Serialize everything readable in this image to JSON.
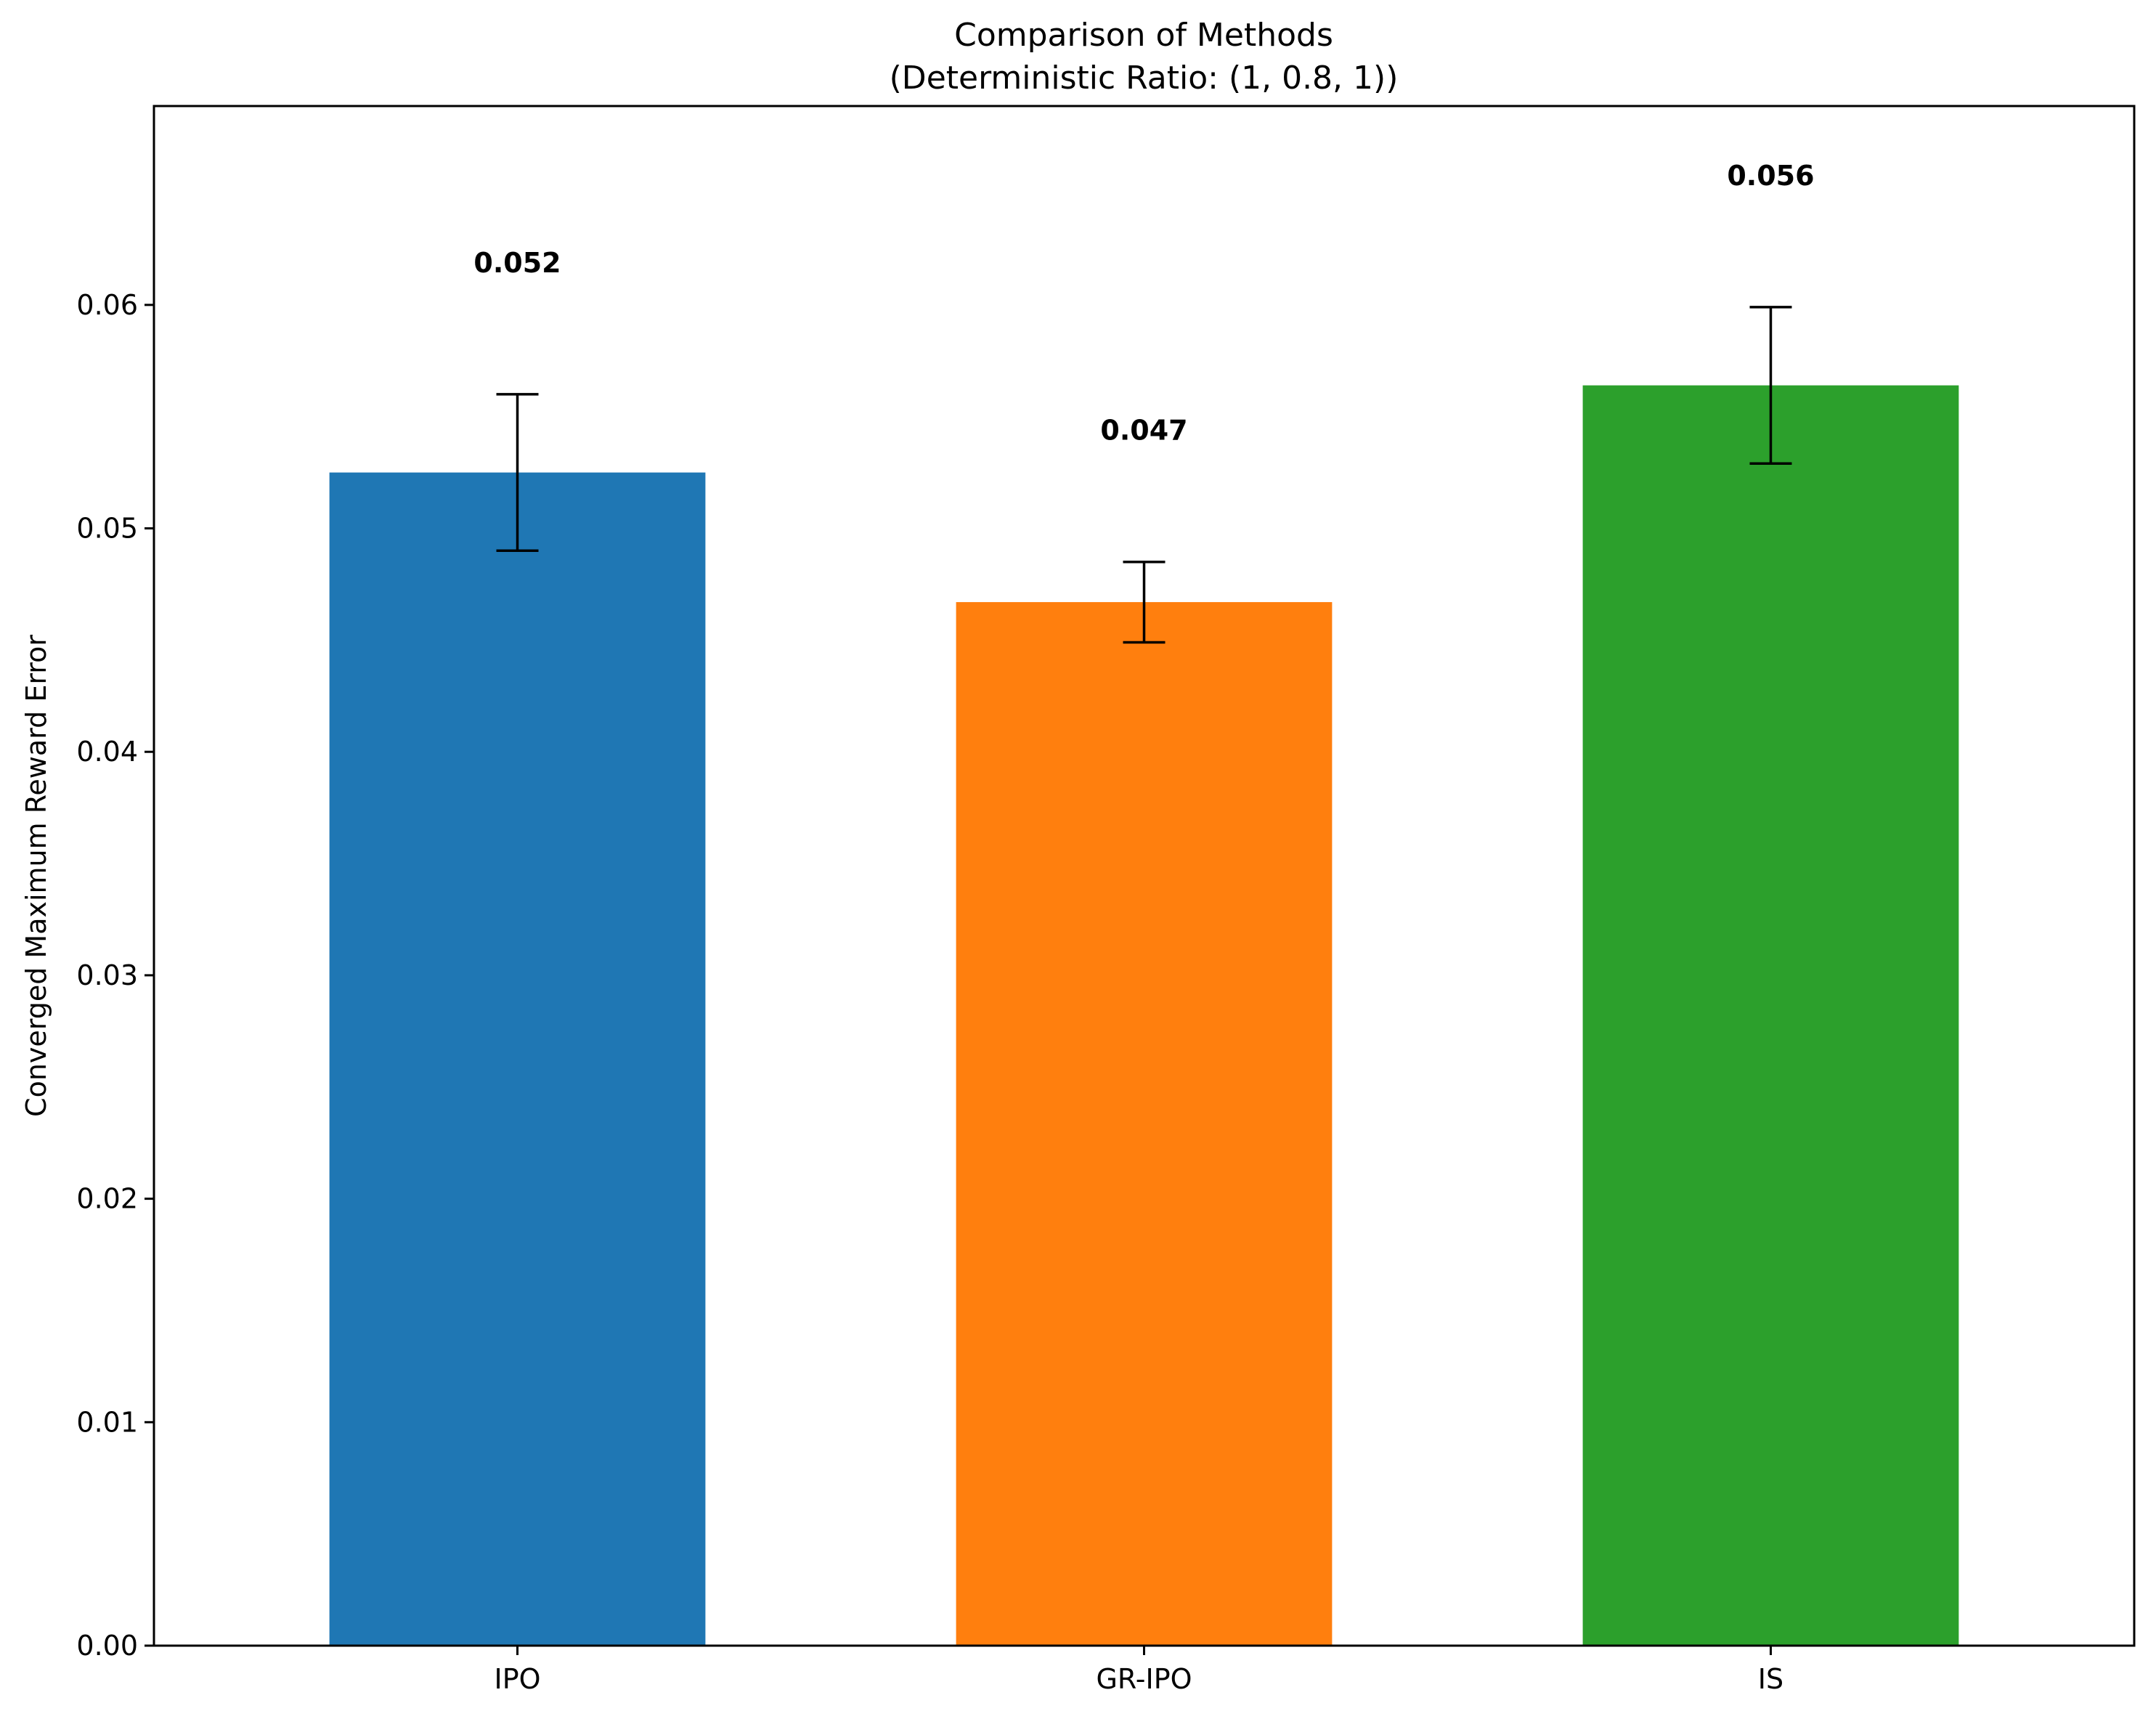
{
  "chart_data": {
    "type": "bar",
    "title": "Comparison of Methods",
    "subtitle": "(Deterministic Ratio: (1, 0.8, 1))",
    "xlabel": "",
    "ylabel": "Converged Maximum Reward Error",
    "categories": [
      "IPO",
      "GR-IPO",
      "IS"
    ],
    "values": [
      0.0525,
      0.0467,
      0.0564
    ],
    "errors": [
      0.0035,
      0.0018,
      0.0035
    ],
    "value_labels": [
      "0.052",
      "0.047",
      "0.056"
    ],
    "colors": [
      "#1f77b4",
      "#ff7f0e",
      "#2ca02c"
    ],
    "ylim": [
      0,
      0.0689
    ],
    "yticks": [
      0,
      0.01,
      0.02,
      0.03,
      0.04,
      0.05,
      0.06
    ],
    "ytick_labels": [
      "0.00",
      "0.01",
      "0.02",
      "0.03",
      "0.04",
      "0.05",
      "0.06"
    ],
    "grid": false,
    "legend": "none"
  }
}
